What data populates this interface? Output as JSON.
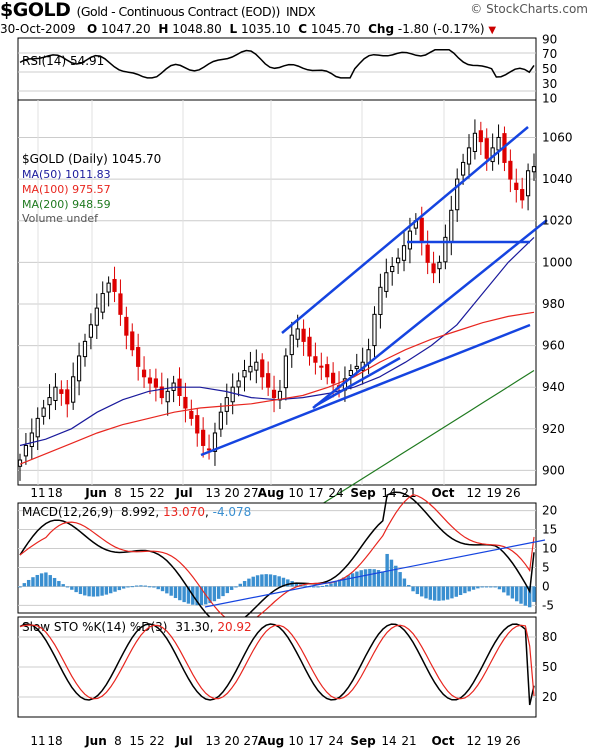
{
  "header": {
    "symbol": "$GOLD",
    "name": "(Gold - Continuous Contract (EOD))",
    "exchange": "INDX",
    "date": "30-Oct-2009",
    "open_label": "O",
    "open": "1047.20",
    "high_label": "H",
    "high": "1048.80",
    "low_label": "L",
    "low": "1035.10",
    "close_label": "C",
    "close": "1045.70",
    "chg_label": "Chg",
    "chg": "-1.80 (-0.17%)",
    "brand": "© StockCharts.com"
  },
  "colors": {
    "up": "#000000",
    "down": "#dd0000",
    "ma50": "#1a1a9c",
    "ma100": "#e8261f",
    "ma200": "#1f7a1f",
    "trend": "#1544e0",
    "macd": "#000000",
    "signal": "#e8261f",
    "hist": "#3a8fd0",
    "rsi": "#000000",
    "stok": "#000000",
    "stod": "#e8261f",
    "grid": "#c8c8c8"
  },
  "rsi": {
    "label": "RSI(14) 54.91",
    "ticks": [
      "90",
      "70",
      "50",
      "30",
      "10"
    ]
  },
  "price": {
    "legend": {
      "title": "$GOLD (Daily) 1045.70",
      "ma50": "MA(50) 1011.83",
      "ma100": "MA(100) 975.57",
      "ma200": "MA(200) 948.59",
      "volume": "Volume undef"
    },
    "ticks": [
      "1060",
      "1040",
      "1020",
      "1000",
      "980",
      "960",
      "940",
      "920",
      "900"
    ]
  },
  "macd": {
    "label_prefix": "MACD(12,26,9)",
    "macd_val": "8.992",
    "signal_val": "13.070",
    "hist_val": "-4.078",
    "ticks": [
      "20",
      "15",
      "10",
      "5",
      "0",
      "-5"
    ]
  },
  "sto": {
    "label_prefix": "Slow STO %K(14) %D(3)",
    "k_val": "31.30",
    "d_val": "20.92",
    "ticks": [
      "80",
      "50",
      "20"
    ]
  },
  "xaxis": {
    "labels_1": [
      "11",
      "18",
      "Jun",
      "8",
      "15",
      "22",
      "Jul",
      "13",
      "20",
      "27",
      "Aug",
      "10",
      "17",
      "24",
      "Sep",
      "14",
      "21",
      "Oct",
      "12",
      "19",
      "26"
    ],
    "labels_2": [
      "11",
      "18",
      "Jun",
      "8",
      "15",
      "22",
      "Jul",
      "13",
      "20",
      "27",
      "Aug",
      "10",
      "17",
      "24",
      "Sep",
      "14",
      "21",
      "Oct",
      "12",
      "19",
      "26"
    ]
  },
  "chart_data": {
    "type": "line",
    "title": "$GOLD (Gold - Continuous Contract (EOD)) INDX",
    "period": "Daily",
    "x_range": [
      "2009-05-06",
      "2009-10-30"
    ],
    "price_ylim": [
      893,
      1078
    ],
    "price_close_approx": [
      905,
      912,
      918,
      925,
      930,
      935,
      940,
      937,
      932,
      945,
      955,
      962,
      970,
      978,
      985,
      990,
      986,
      975,
      965,
      958,
      950,
      945,
      942,
      940,
      935,
      938,
      942,
      936,
      930,
      925,
      918,
      912,
      910,
      918,
      928,
      935,
      940,
      943,
      948,
      950,
      952,
      945,
      940,
      935,
      938,
      955,
      965,
      968,
      962,
      955,
      952,
      950,
      945,
      942,
      940,
      944,
      948,
      950,
      952,
      958,
      975,
      988,
      995,
      998,
      1002,
      1008,
      1015,
      1020,
      1010,
      1000,
      995,
      1000,
      1012,
      1025,
      1040,
      1048,
      1055,
      1062,
      1058,
      1050,
      1055,
      1060,
      1048,
      1040,
      1035,
      1030,
      1044,
      1046
    ],
    "ma50_approx": [
      912,
      915,
      920,
      928,
      934,
      938,
      940,
      940,
      938,
      935,
      934,
      935,
      937,
      940,
      945,
      952,
      960,
      970,
      985,
      1000,
      1012
    ],
    "ma100_approx": [
      903,
      908,
      913,
      918,
      922,
      925,
      928,
      930,
      931,
      932,
      934,
      936,
      940,
      945,
      952,
      958,
      963,
      967,
      971,
      974,
      976
    ],
    "ma200_approx": [
      878,
      883,
      888,
      893,
      898,
      903,
      908,
      913,
      918,
      923,
      928,
      933,
      938,
      943,
      948
    ],
    "rsi14_last": 54.91,
    "rsi_ylim": [
      10,
      90
    ],
    "macd_last": 8.992,
    "signal_last": 13.07,
    "hist_last": -4.078,
    "macd_ylim": [
      -7,
      22
    ],
    "stoK_last": 31.3,
    "stoD_last": 20.92,
    "sto_ylim": [
      0,
      100
    ]
  }
}
